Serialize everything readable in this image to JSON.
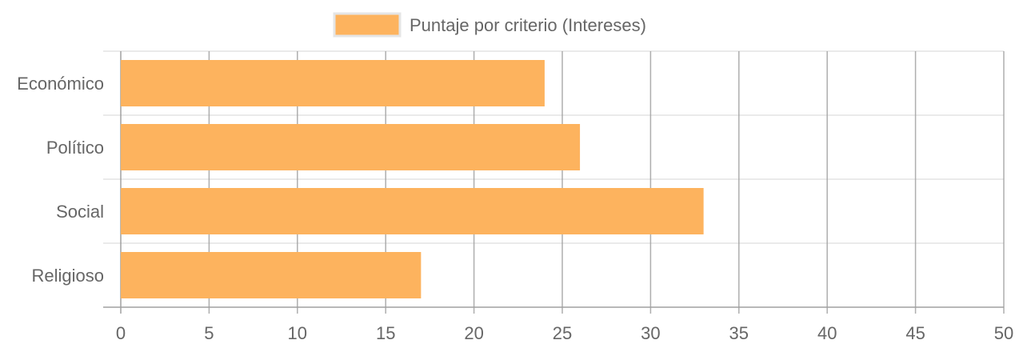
{
  "chart_data": {
    "type": "bar",
    "orientation": "horizontal",
    "categories": [
      "Económico",
      "Político",
      "Social",
      "Religioso"
    ],
    "series": [
      {
        "name": "Puntaje por criterio (Intereses)",
        "values": [
          24,
          26,
          33,
          17
        ],
        "color": "#FDB35E"
      }
    ],
    "xlim": [
      0,
      50
    ],
    "xticks": [
      "0",
      "5",
      "10",
      "15",
      "20",
      "25",
      "30",
      "35",
      "40",
      "45",
      "50"
    ],
    "grid": true,
    "legend": "top-center"
  },
  "colors": {
    "bar_fill": "#FDB35E",
    "legend_border": "#E5E5E5",
    "grid": "#CCCCCC",
    "grid_vertical": "#A0A0A0",
    "text": "#666666"
  }
}
